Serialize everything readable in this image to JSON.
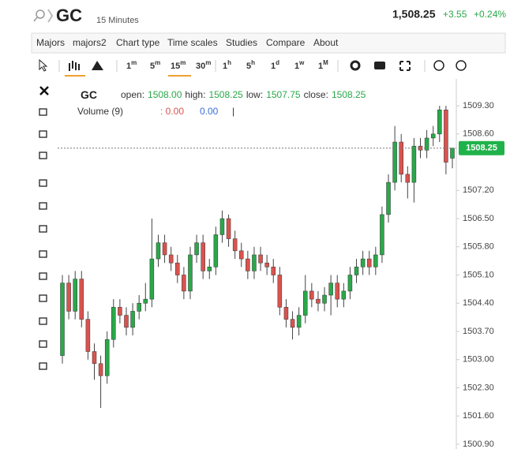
{
  "header": {
    "symbol": "GC",
    "interval": "15 Minutes",
    "price": "1,508.25",
    "change": "+3.55",
    "change_pct": "+0.24%"
  },
  "menu": [
    "Majors",
    "majors2",
    "Chart type",
    "Time scales",
    "Studies",
    "Compare",
    "About"
  ],
  "intervals": [
    {
      "num": "1",
      "unit": "m"
    },
    {
      "num": "5",
      "unit": "m"
    },
    {
      "num": "15",
      "unit": "m"
    },
    {
      "num": "30",
      "unit": "m"
    },
    {
      "num": "1",
      "unit": "h"
    },
    {
      "num": "5",
      "unit": "h"
    },
    {
      "num": "1",
      "unit": "d"
    },
    {
      "num": "1",
      "unit": "w"
    },
    {
      "num": "1",
      "unit": "M"
    }
  ],
  "chart_data": {
    "type": "candlestick",
    "legend": {
      "symbol": "GC",
      "open_label": "open:",
      "open": "1508.00",
      "high_label": "high:",
      "high": "1508.25",
      "low_label": "low:",
      "low": "1507.75",
      "close_label": "close:",
      "close": "1508.25",
      "volume": "Volume (9)",
      "vol_a": ": 0.00",
      "vol_b": "0.00",
      "sep": "|"
    },
    "open": [
      1503.1,
      1504.9,
      1504.2,
      1505.0,
      1504.0,
      1503.2,
      1502.9,
      1502.6,
      1503.5,
      1504.3,
      1504.1,
      1503.8,
      1504.2,
      1504.4,
      1504.5,
      1505.5,
      1505.9,
      1505.6,
      1505.4,
      1505.1,
      1504.7,
      1505.6,
      1505.9,
      1505.2,
      1505.3,
      1506.1,
      1506.5,
      1506.0,
      1505.7,
      1505.5,
      1505.2,
      1505.6,
      1505.4,
      1505.3,
      1505.1,
      1504.3,
      1504.0,
      1503.8,
      1504.1,
      1504.7,
      1504.5,
      1504.4,
      1504.6,
      1504.9,
      1504.5,
      1504.7,
      1505.1,
      1505.3,
      1505.5,
      1505.3,
      1505.6,
      1506.6,
      1507.4,
      1508.4,
      1507.6,
      1507.4,
      1508.3,
      1508.2,
      1508.5,
      1508.6,
      1509.2,
      1508.0
    ],
    "high": [
      1505.1,
      1505.1,
      1505.2,
      1505.2,
      1504.2,
      1503.4,
      1503.1,
      1503.7,
      1504.5,
      1504.5,
      1504.3,
      1504.4,
      1504.6,
      1504.9,
      1506.5,
      1506.1,
      1506.1,
      1505.8,
      1505.6,
      1505.3,
      1505.8,
      1506.1,
      1506.1,
      1505.5,
      1506.3,
      1506.7,
      1506.6,
      1506.2,
      1505.9,
      1505.7,
      1505.8,
      1505.8,
      1505.6,
      1505.5,
      1505.3,
      1504.5,
      1504.2,
      1504.3,
      1505.1,
      1504.9,
      1504.7,
      1504.8,
      1505.1,
      1505.1,
      1504.9,
      1505.3,
      1505.5,
      1505.7,
      1505.7,
      1505.8,
      1506.8,
      1507.6,
      1508.8,
      1508.6,
      1507.8,
      1508.5,
      1508.5,
      1508.7,
      1508.8,
      1509.3,
      1509.3,
      1508.25
    ],
    "low": [
      1502.9,
      1504.0,
      1504.0,
      1503.8,
      1503.0,
      1502.5,
      1501.8,
      1502.4,
      1503.3,
      1503.9,
      1503.6,
      1503.6,
      1504.0,
      1504.2,
      1504.3,
      1505.3,
      1505.4,
      1505.2,
      1504.9,
      1504.5,
      1504.5,
      1505.4,
      1505.0,
      1505.0,
      1505.1,
      1505.9,
      1505.8,
      1505.5,
      1505.3,
      1505.0,
      1505.0,
      1505.2,
      1505.1,
      1504.9,
      1504.1,
      1503.8,
      1503.5,
      1503.6,
      1503.9,
      1504.3,
      1504.2,
      1504.2,
      1504.1,
      1504.3,
      1504.3,
      1504.5,
      1504.9,
      1505.1,
      1505.1,
      1505.1,
      1505.4,
      1506.4,
      1507.2,
      1507.4,
      1507.0,
      1506.9,
      1508.0,
      1508.0,
      1508.3,
      1508.4,
      1507.6,
      1507.75
    ],
    "close": [
      1504.9,
      1504.2,
      1505.0,
      1504.0,
      1503.2,
      1502.9,
      1502.6,
      1503.5,
      1504.3,
      1504.1,
      1503.8,
      1504.2,
      1504.4,
      1504.5,
      1505.5,
      1505.9,
      1505.6,
      1505.4,
      1505.1,
      1504.7,
      1505.6,
      1505.9,
      1505.2,
      1505.3,
      1506.1,
      1506.5,
      1506.0,
      1505.7,
      1505.5,
      1505.2,
      1505.6,
      1505.4,
      1505.3,
      1505.1,
      1504.3,
      1504.0,
      1503.8,
      1504.1,
      1504.7,
      1504.5,
      1504.4,
      1504.6,
      1504.9,
      1504.5,
      1504.7,
      1505.1,
      1505.3,
      1505.5,
      1505.3,
      1505.6,
      1506.6,
      1507.4,
      1508.4,
      1507.6,
      1507.4,
      1508.3,
      1508.2,
      1508.5,
      1508.6,
      1509.2,
      1507.9,
      1508.25
    ],
    "up_color": "#2aa84a",
    "down_color": "#d9534f",
    "last_price": 1508.25,
    "last_color": "#20b24a",
    "ylim": [
      1500.8,
      1509.87
    ],
    "yticks": [
      {
        "value": 1509.3,
        "label": "1509.30"
      },
      {
        "value": 1508.6,
        "label": "1508.60"
      },
      {
        "value": 1507.2,
        "label": "1507.20"
      },
      {
        "value": 1506.5,
        "label": "1506.50"
      },
      {
        "value": 1505.8,
        "label": "1505.80"
      },
      {
        "value": 1505.1,
        "label": "1505.10"
      },
      {
        "value": 1504.4,
        "label": "1504.40"
      },
      {
        "value": 1503.7,
        "label": "1503.70"
      },
      {
        "value": 1503.0,
        "label": "1503.00"
      },
      {
        "value": 1502.3,
        "label": "1502.30"
      },
      {
        "value": 1501.6,
        "label": "1501.60"
      },
      {
        "value": 1500.9,
        "label": "1500.90"
      }
    ]
  }
}
